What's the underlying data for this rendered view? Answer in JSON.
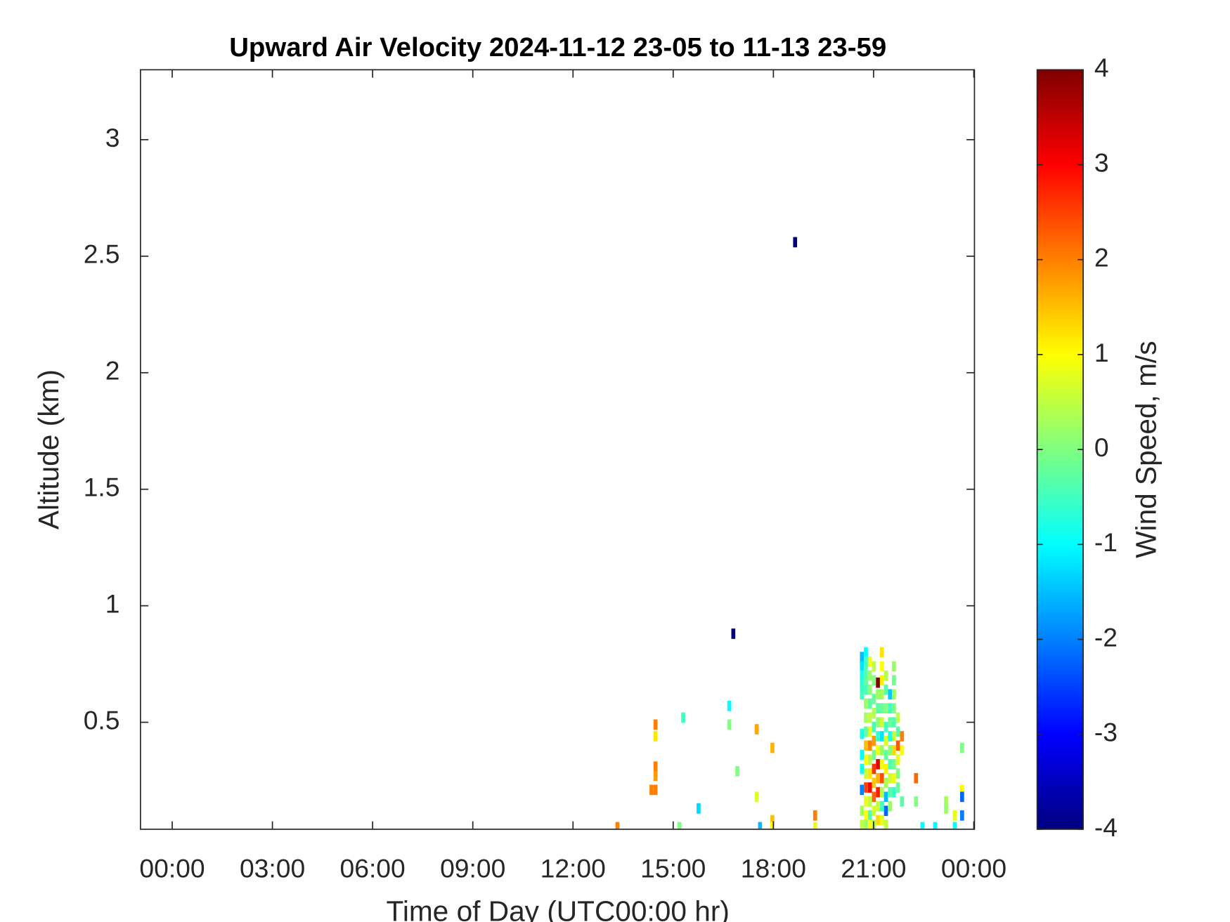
{
  "chart_data": {
    "type": "heatmap",
    "title": "Upward Air Velocity 2024-11-12 23-05 to 11-13 23-59",
    "x_label": "Time of Day (UTC00:00 hr)",
    "y_label": "Altitude (km)",
    "colorbar_label": "Wind Speed, m/s",
    "colormap": "jet",
    "xlim": [
      -0.95,
      24.02
    ],
    "xticks": [
      {
        "value": 0,
        "label": "00:00"
      },
      {
        "value": 3,
        "label": "03:00"
      },
      {
        "value": 6,
        "label": "06:00"
      },
      {
        "value": 9,
        "label": "09:00"
      },
      {
        "value": 12,
        "label": "12:00"
      },
      {
        "value": 15,
        "label": "15:00"
      },
      {
        "value": 18,
        "label": "18:00"
      },
      {
        "value": 21,
        "label": "21:00"
      },
      {
        "value": 24,
        "label": "00:00"
      }
    ],
    "ylim": [
      0.041,
      3.3
    ],
    "yticks": [
      0.5,
      1,
      1.5,
      2,
      2.5,
      3
    ],
    "clim": [
      -4,
      4
    ],
    "cticks": [
      -4,
      -3,
      -2,
      -1,
      0,
      1,
      2,
      3,
      4
    ],
    "x": [
      18.65,
      16.8,
      14.47,
      14.47,
      14.47,
      14.47,
      14.47,
      14.35,
      15.3,
      16.68,
      16.68,
      17.5,
      17.97,
      16.92,
      17.5,
      15.76,
      13.33,
      15.19,
      17.6,
      17.97,
      17.97,
      19.25,
      19.25,
      22.27,
      22.27,
      22.46,
      22.84,
      23.17,
      23.17,
      23.43,
      23.43,
      23.65,
      23.65,
      23.65,
      23.65,
      20.65,
      20.65,
      20.65,
      20.65,
      20.65,
      20.65,
      20.65,
      20.65,
      20.65,
      20.65,
      20.65,
      20.77,
      20.77,
      20.77,
      20.77,
      20.77,
      20.77,
      20.77,
      20.77,
      20.77,
      20.77,
      20.77,
      20.77,
      20.77,
      20.77,
      20.77,
      20.89,
      20.89,
      20.89,
      20.89,
      20.89,
      20.89,
      20.89,
      20.89,
      20.89,
      20.89,
      20.89,
      20.89,
      20.89,
      21.01,
      21.01,
      21.01,
      21.01,
      21.01,
      21.01,
      21.01,
      21.01,
      21.01,
      21.01,
      21.01,
      21.01,
      21.13,
      21.13,
      21.13,
      21.13,
      21.13,
      21.13,
      21.13,
      21.13,
      21.13,
      21.13,
      21.13,
      21.25,
      21.25,
      21.25,
      21.25,
      21.25,
      21.25,
      21.25,
      21.25,
      21.25,
      21.25,
      21.25,
      21.25,
      21.25,
      21.37,
      21.37,
      21.37,
      21.37,
      21.37,
      21.37,
      21.37,
      21.37,
      21.37,
      21.37,
      21.37,
      21.49,
      21.49,
      21.49,
      21.49,
      21.49,
      21.49,
      21.49,
      21.49,
      21.49,
      21.61,
      21.61,
      21.61,
      21.61,
      21.61,
      21.61,
      21.61,
      21.61,
      21.61,
      21.61,
      21.73,
      21.73,
      21.73,
      21.73,
      21.73,
      21.73,
      21.85,
      21.85,
      21.85
    ],
    "y": [
      2.56,
      0.88,
      0.49,
      0.44,
      0.31,
      0.27,
      0.21,
      0.21,
      0.52,
      0.57,
      0.49,
      0.47,
      0.39,
      0.29,
      0.18,
      0.13,
      0.05,
      0.05,
      0.05,
      0.08,
      0.05,
      0.1,
      0.05,
      0.26,
      0.16,
      0.05,
      0.05,
      0.16,
      0.13,
      0.1,
      0.05,
      0.39,
      0.21,
      0.18,
      0.1,
      0.78,
      0.74,
      0.7,
      0.66,
      0.62,
      0.45,
      0.36,
      0.3,
      0.21,
      0.12,
      0.06,
      0.8,
      0.76,
      0.72,
      0.68,
      0.64,
      0.58,
      0.52,
      0.46,
      0.4,
      0.34,
      0.28,
      0.22,
      0.16,
      0.1,
      0.06,
      0.76,
      0.7,
      0.64,
      0.58,
      0.52,
      0.46,
      0.4,
      0.34,
      0.28,
      0.22,
      0.16,
      0.1,
      0.06,
      0.74,
      0.68,
      0.6,
      0.54,
      0.48,
      0.42,
      0.36,
      0.3,
      0.24,
      0.18,
      0.12,
      0.06,
      0.67,
      0.62,
      0.56,
      0.5,
      0.44,
      0.38,
      0.32,
      0.26,
      0.2,
      0.14,
      0.08,
      0.8,
      0.74,
      0.68,
      0.62,
      0.56,
      0.5,
      0.44,
      0.38,
      0.32,
      0.26,
      0.2,
      0.14,
      0.08,
      0.7,
      0.64,
      0.56,
      0.48,
      0.42,
      0.36,
      0.3,
      0.24,
      0.18,
      0.12,
      0.06,
      0.62,
      0.56,
      0.5,
      0.44,
      0.38,
      0.32,
      0.26,
      0.2,
      0.14,
      0.74,
      0.68,
      0.62,
      0.56,
      0.5,
      0.44,
      0.38,
      0.32,
      0.26,
      0.2,
      0.52,
      0.46,
      0.4,
      0.34,
      0.28,
      0.22,
      0.44,
      0.38,
      0.16
    ],
    "values": [
      -4,
      -4,
      2,
      1.2,
      2,
      1.8,
      2,
      2,
      -0.5,
      -1,
      0,
      1.7,
      1.6,
      0,
      0.7,
      -1.3,
      2,
      0,
      -1.5,
      1.5,
      1,
      2,
      0.8,
      2.2,
      0,
      -1,
      -1,
      0.3,
      0.2,
      0.8,
      -1,
      0,
      1,
      -2.2,
      -2,
      -1.5,
      -1.2,
      -0.8,
      -0.6,
      -0.5,
      -0.8,
      -1,
      -0.9,
      -2,
      0.3,
      0.5,
      -1,
      -0.5,
      -0.3,
      -0.2,
      -0.4,
      0.2,
      0.3,
      -0.2,
      1.5,
      1,
      0.6,
      2.5,
      0.8,
      1,
      0.2,
      0.9,
      0.2,
      0.1,
      -0.3,
      0.5,
      0.8,
      2,
      0.4,
      1.2,
      3,
      0.5,
      -0.4,
      1,
      0.5,
      0,
      -0.2,
      0.4,
      -0.5,
      1.8,
      -0.1,
      2.6,
      1.4,
      2.2,
      0.7,
      0.3,
      4,
      0.2,
      -0.3,
      0.1,
      -0.6,
      0.9,
      3.2,
      1.6,
      2.8,
      0.6,
      1.3,
      1.2,
      1,
      1.1,
      0.3,
      -0.2,
      0.6,
      -1.2,
      0.2,
      0.9,
      2.4,
      0.4,
      -0.5,
      0.8,
      0.4,
      -0.3,
      0,
      -0.5,
      0.7,
      -0.2,
      1.1,
      0.3,
      -1.5,
      -2.2,
      0.5,
      -1.4,
      -0.5,
      -0.2,
      -0.8,
      0.1,
      -0.4,
      0.6,
      -0.3,
      0.2,
      0.2,
      -0.1,
      0.3,
      0,
      -0.4,
      0.6,
      1.3,
      -0.1,
      0.9,
      -0.6,
      0.5,
      -0.3,
      2.3,
      0.8,
      0,
      -0.2,
      2,
      1,
      -0.3
    ]
  }
}
